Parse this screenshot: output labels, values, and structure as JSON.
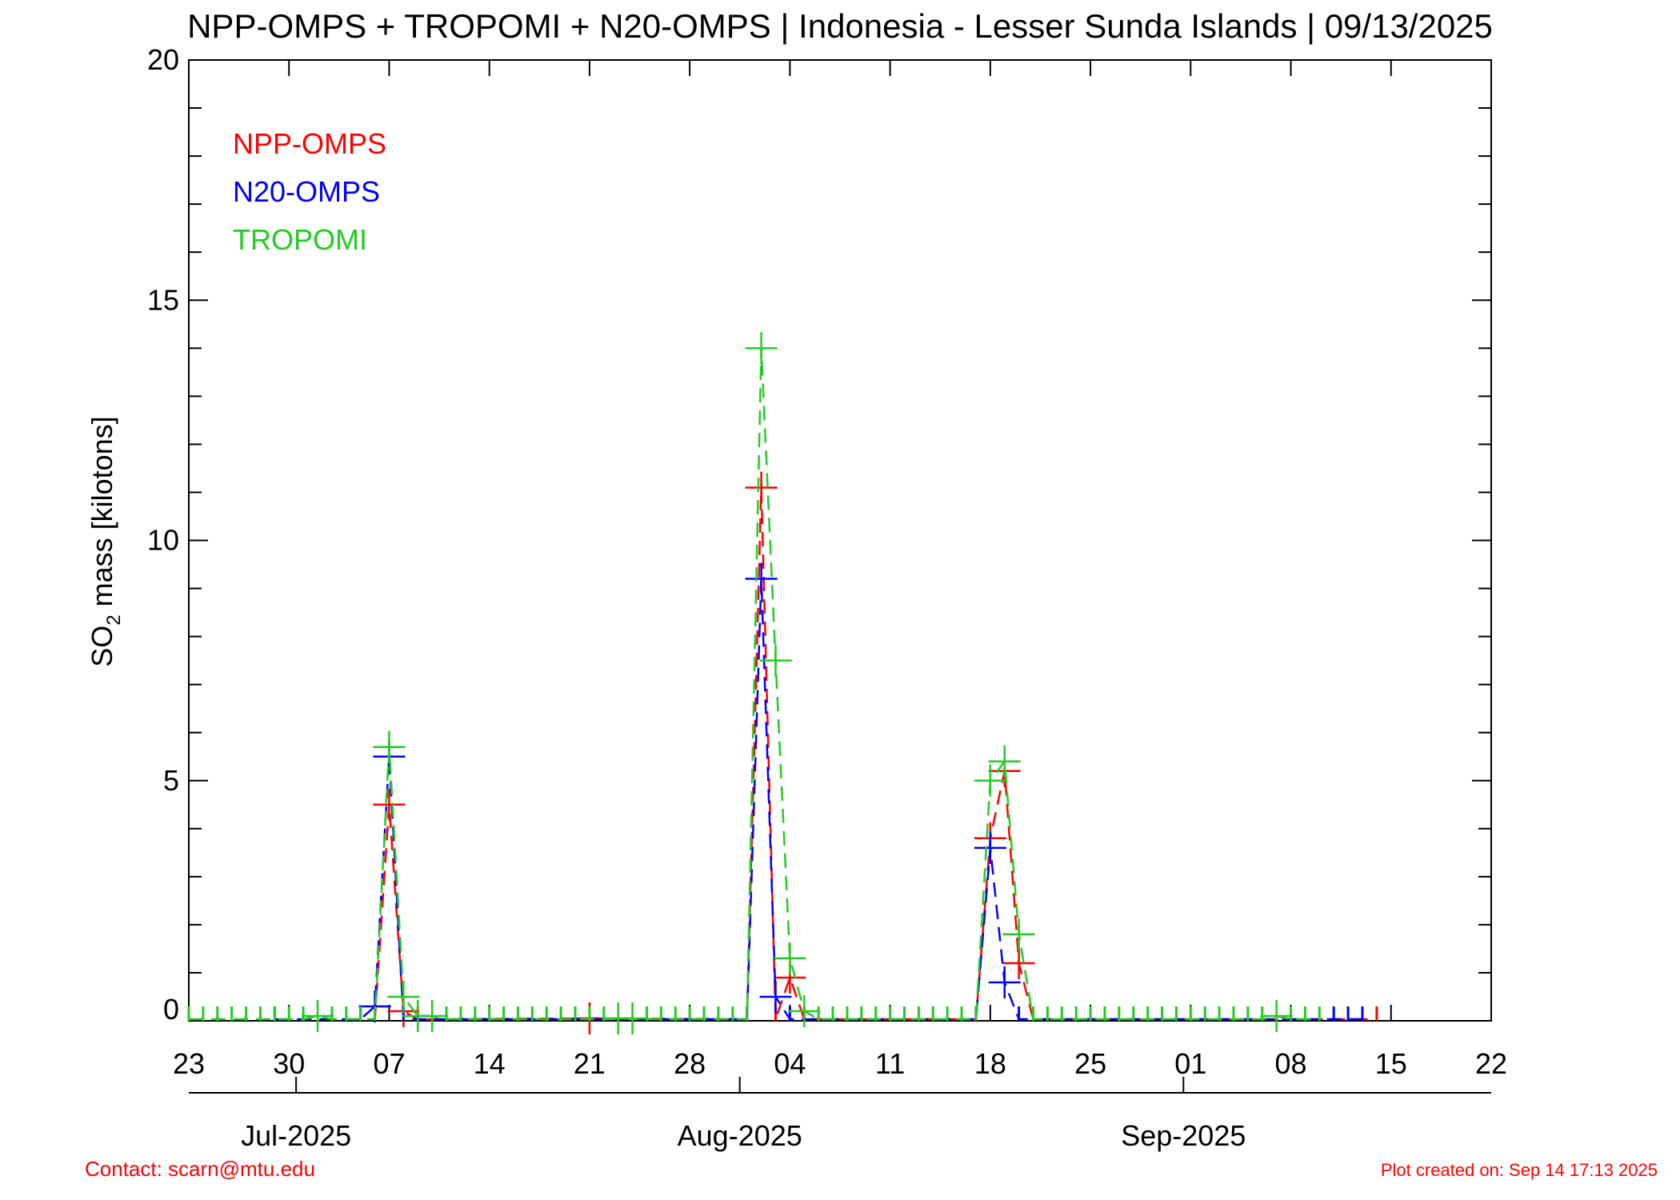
{
  "chart_data": {
    "type": "line",
    "title": "NPP-OMPS + TROPOMI + N20-OMPS | Indonesia - Lesser Sunda Islands | 09/13/2025",
    "ylabel": {
      "main": "SO",
      "sub": "2",
      "rest": " mass [kilotons]"
    },
    "xlim": [
      "2025-06-23",
      "2025-09-22"
    ],
    "ylim": [
      0,
      20
    ],
    "y_ticks": [
      0,
      5,
      10,
      15,
      20
    ],
    "x_ticks": [
      {
        "date": "2025-06-23",
        "label": "23"
      },
      {
        "date": "2025-06-30",
        "label": "30"
      },
      {
        "date": "2025-07-07",
        "label": "07"
      },
      {
        "date": "2025-07-14",
        "label": "14"
      },
      {
        "date": "2025-07-21",
        "label": "21"
      },
      {
        "date": "2025-07-28",
        "label": "28"
      },
      {
        "date": "2025-08-04",
        "label": "04"
      },
      {
        "date": "2025-08-11",
        "label": "11"
      },
      {
        "date": "2025-08-18",
        "label": "18"
      },
      {
        "date": "2025-08-25",
        "label": "25"
      },
      {
        "date": "2025-09-01",
        "label": "01"
      },
      {
        "date": "2025-09-08",
        "label": "08"
      },
      {
        "date": "2025-09-15",
        "label": "15"
      },
      {
        "date": "2025-09-22",
        "label": "22"
      }
    ],
    "month_ticks": [
      {
        "date": "2025-07-01",
        "label": "Jul-2025"
      },
      {
        "date": "2025-08-01",
        "label": "Aug-2025"
      },
      {
        "date": "2025-09-01",
        "label": "Sep-2025"
      }
    ],
    "legend_placement": "top-left",
    "series": [
      {
        "name": "NPP-OMPS",
        "color": "#ff0000",
        "points": [
          [
            "2025-07-06",
            0
          ],
          [
            "2025-07-07",
            4.5
          ],
          [
            "2025-07-08",
            0.2
          ],
          [
            "2025-07-09",
            0
          ],
          [
            "2025-07-21",
            0.05
          ],
          [
            "2025-08-01",
            0
          ],
          [
            "2025-08-02",
            11.1
          ],
          [
            "2025-08-03",
            0
          ],
          [
            "2025-08-04",
            0.9
          ],
          [
            "2025-08-05",
            0
          ],
          [
            "2025-08-17",
            0
          ],
          [
            "2025-08-18",
            3.8
          ],
          [
            "2025-08-19",
            5.2
          ],
          [
            "2025-08-20",
            1.2
          ],
          [
            "2025-08-21",
            0
          ],
          [
            "2025-09-14",
            0
          ]
        ]
      },
      {
        "name": "N20-OMPS",
        "color": "#0000ff",
        "points": [
          [
            "2025-06-29",
            0
          ],
          [
            "2025-07-05",
            0
          ],
          [
            "2025-07-06",
            0.3
          ],
          [
            "2025-07-07",
            5.5
          ],
          [
            "2025-07-08",
            0
          ],
          [
            "2025-08-01",
            0
          ],
          [
            "2025-08-02",
            9.2
          ],
          [
            "2025-08-03",
            0.5
          ],
          [
            "2025-08-04",
            0
          ],
          [
            "2025-08-17",
            0
          ],
          [
            "2025-08-18",
            3.6
          ],
          [
            "2025-08-19",
            0.8
          ],
          [
            "2025-08-20",
            0
          ],
          [
            "2025-09-11",
            0
          ],
          [
            "2025-09-12",
            0
          ],
          [
            "2025-09-13",
            0
          ]
        ]
      },
      {
        "name": "TROPOMI",
        "color": "#22cc22",
        "points": [
          [
            "2025-06-23",
            0
          ],
          [
            "2025-06-24",
            0
          ],
          [
            "2025-06-25",
            0
          ],
          [
            "2025-06-26",
            0
          ],
          [
            "2025-06-27",
            0
          ],
          [
            "2025-06-28",
            0
          ],
          [
            "2025-06-29",
            0
          ],
          [
            "2025-06-30",
            0
          ],
          [
            "2025-07-01",
            0
          ],
          [
            "2025-07-02",
            0.1
          ],
          [
            "2025-07-03",
            0
          ],
          [
            "2025-07-04",
            0
          ],
          [
            "2025-07-05",
            0
          ],
          [
            "2025-07-06",
            0
          ],
          [
            "2025-07-07",
            5.7
          ],
          [
            "2025-07-08",
            0.5
          ],
          [
            "2025-07-09",
            0.1
          ],
          [
            "2025-07-10",
            0.1
          ],
          [
            "2025-07-11",
            0
          ],
          [
            "2025-07-12",
            0
          ],
          [
            "2025-07-13",
            0
          ],
          [
            "2025-07-14",
            0
          ],
          [
            "2025-07-15",
            0
          ],
          [
            "2025-07-16",
            0
          ],
          [
            "2025-07-17",
            0
          ],
          [
            "2025-07-18",
            0
          ],
          [
            "2025-07-19",
            0
          ],
          [
            "2025-07-20",
            0
          ],
          [
            "2025-07-21",
            0
          ],
          [
            "2025-07-22",
            0
          ],
          [
            "2025-07-23",
            0.05
          ],
          [
            "2025-07-24",
            0.05
          ],
          [
            "2025-07-25",
            0
          ],
          [
            "2025-07-26",
            0
          ],
          [
            "2025-07-27",
            0
          ],
          [
            "2025-07-28",
            0
          ],
          [
            "2025-07-29",
            0
          ],
          [
            "2025-07-30",
            0
          ],
          [
            "2025-07-31",
            0
          ],
          [
            "2025-08-01",
            0
          ],
          [
            "2025-08-02",
            14.0
          ],
          [
            "2025-08-03",
            7.5
          ],
          [
            "2025-08-04",
            1.3
          ],
          [
            "2025-08-05",
            0.2
          ],
          [
            "2025-08-06",
            0
          ],
          [
            "2025-08-07",
            0
          ],
          [
            "2025-08-08",
            0
          ],
          [
            "2025-08-09",
            0
          ],
          [
            "2025-08-10",
            0
          ],
          [
            "2025-08-11",
            0
          ],
          [
            "2025-08-12",
            0
          ],
          [
            "2025-08-13",
            0
          ],
          [
            "2025-08-14",
            0
          ],
          [
            "2025-08-15",
            0
          ],
          [
            "2025-08-16",
            0
          ],
          [
            "2025-08-17",
            0
          ],
          [
            "2025-08-18",
            5.0
          ],
          [
            "2025-08-19",
            5.4
          ],
          [
            "2025-08-20",
            1.8
          ],
          [
            "2025-08-21",
            0
          ],
          [
            "2025-08-22",
            0
          ],
          [
            "2025-08-23",
            0
          ],
          [
            "2025-08-24",
            0
          ],
          [
            "2025-08-25",
            0
          ],
          [
            "2025-08-26",
            0
          ],
          [
            "2025-08-27",
            0
          ],
          [
            "2025-08-28",
            0
          ],
          [
            "2025-08-29",
            0
          ],
          [
            "2025-08-30",
            0
          ],
          [
            "2025-08-31",
            0
          ],
          [
            "2025-09-01",
            0
          ],
          [
            "2025-09-02",
            0
          ],
          [
            "2025-09-03",
            0
          ],
          [
            "2025-09-04",
            0
          ],
          [
            "2025-09-05",
            0
          ],
          [
            "2025-09-06",
            0
          ],
          [
            "2025-09-07",
            0.1
          ],
          [
            "2025-09-08",
            0
          ],
          [
            "2025-09-09",
            0
          ],
          [
            "2025-09-10",
            0
          ]
        ]
      }
    ]
  },
  "footer": {
    "contact": "Contact: scarn@mtu.edu",
    "created": "Plot created on: Sep 14 17:13 2025"
  }
}
